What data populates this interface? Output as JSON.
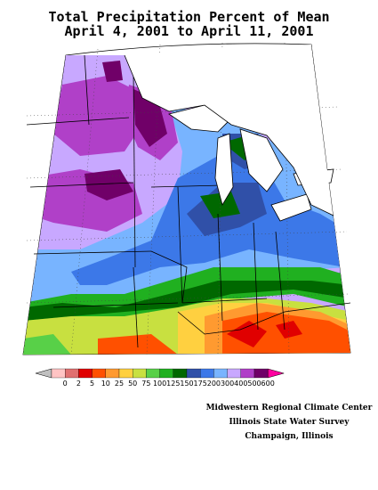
{
  "title_line1": "Total Precipitation Percent of Mean",
  "title_line2": "April 4, 2001 to April 11, 2001",
  "legend": {
    "colors": [
      "#c0c0c0",
      "#ffc4c4",
      "#e07070",
      "#e00000",
      "#ff5000",
      "#ff9a30",
      "#ffd040",
      "#c8e040",
      "#58d048",
      "#20b020",
      "#006800",
      "#3050a8",
      "#3c78e8",
      "#78b4ff",
      "#c8a8ff",
      "#b040c8",
      "#700068",
      "#ff00a0"
    ],
    "labels": [
      "0",
      "2",
      "5",
      "10",
      "25",
      "50",
      "75",
      "100",
      "125",
      "150",
      "175",
      "200",
      "300",
      "400",
      "500",
      "600"
    ]
  },
  "credits": [
    "Midwestern Regional Climate Center",
    "Illinois State Water Survey",
    "Champaign, Illinois"
  ]
}
